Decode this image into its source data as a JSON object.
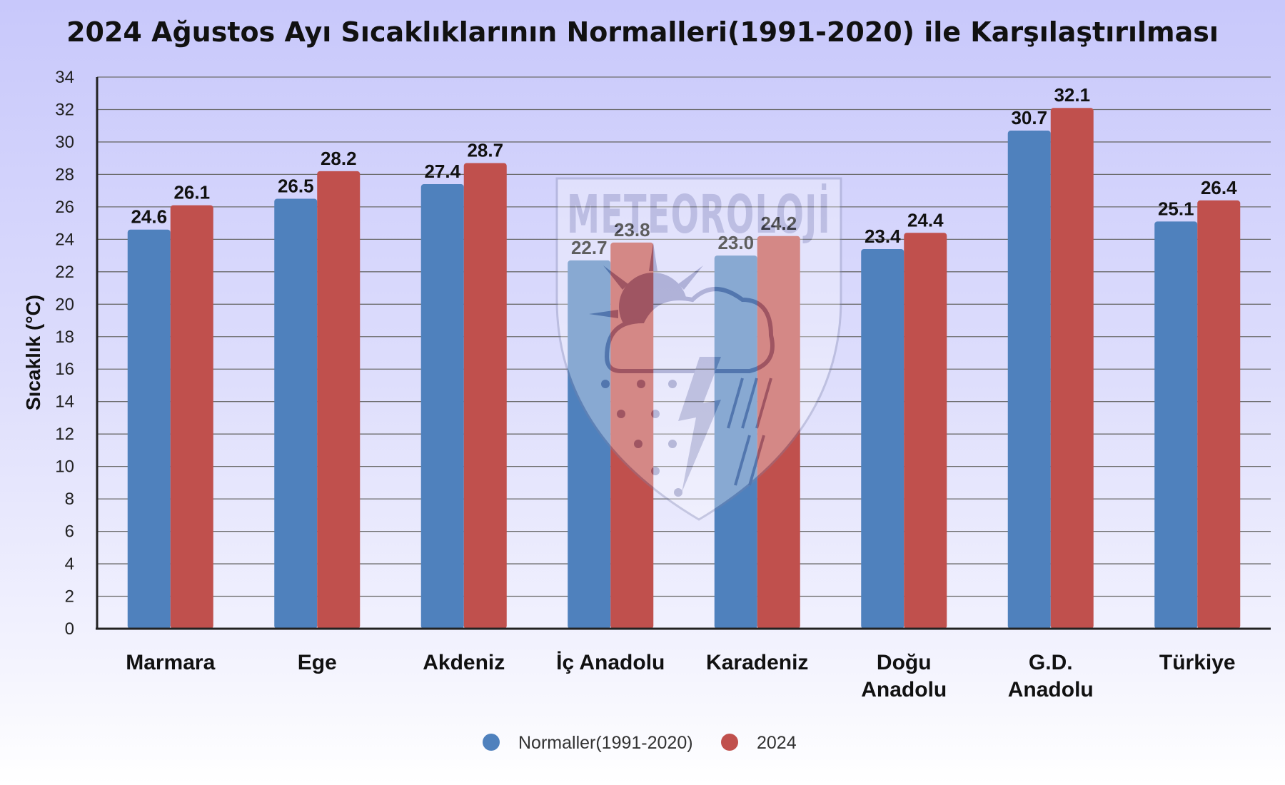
{
  "chart_data": {
    "type": "bar",
    "title": "2024 Ağustos Ayı Sıcaklıklarının Normalleri(1991-2020) ile Karşılaştırılması",
    "ylabel": "Sıcaklık (°C)",
    "xlabel": "",
    "ylim": [
      0,
      34
    ],
    "yticks": [
      0,
      2,
      4,
      6,
      8,
      10,
      12,
      14,
      16,
      18,
      20,
      22,
      24,
      26,
      28,
      30,
      32,
      34
    ],
    "grid": true,
    "legend_position": "bottom",
    "categories": [
      [
        "Marmara"
      ],
      [
        "Ege"
      ],
      [
        "Akdeniz"
      ],
      [
        "İç Anadolu"
      ],
      [
        "Karadeniz"
      ],
      [
        "Doğu",
        "Anadolu"
      ],
      [
        "G.D.",
        "Anadolu"
      ],
      [
        "Türkiye"
      ]
    ],
    "series": [
      {
        "name": "Normaller(1991-2020)",
        "color": "#4f81bd",
        "values": [
          24.6,
          26.5,
          27.4,
          22.7,
          23.0,
          23.4,
          30.7,
          25.1
        ]
      },
      {
        "name": "2024",
        "color": "#c0504d",
        "values": [
          26.1,
          28.2,
          28.7,
          23.8,
          24.2,
          24.4,
          32.1,
          26.4
        ]
      }
    ]
  },
  "watermark": {
    "text": "METEOROLOJİ"
  }
}
